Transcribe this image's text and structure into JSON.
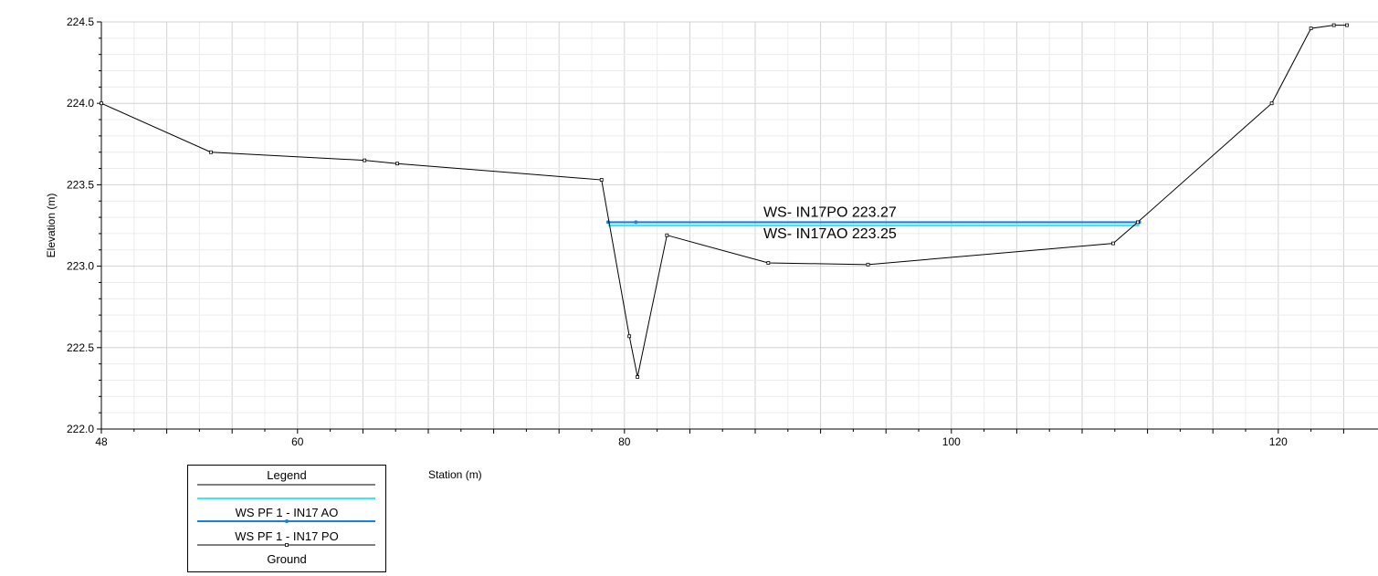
{
  "chart_data": {
    "type": "line",
    "title": "",
    "xlabel": "Station (m)",
    "ylabel": "Elevation (m)",
    "xlim": [
      48,
      125
    ],
    "ylim": [
      222.0,
      224.5
    ],
    "x_ticks": [
      "48",
      "60",
      "80",
      "100",
      "120"
    ],
    "y_ticks": [
      "222.0",
      "222.5",
      "223.0",
      "223.5",
      "224.0",
      "224.5"
    ],
    "grid": true,
    "legend_position": "bottom-left",
    "legend_title": "Legend",
    "series": [
      {
        "name": "WS PF 1 - IN17 AO",
        "color": "#3ee6f0",
        "x": [
          79.0,
          111.5
        ],
        "y": [
          223.25,
          223.25
        ]
      },
      {
        "name": "WS PF 1 - IN17 PO",
        "color": "#1a7fe0",
        "x": [
          79.0,
          80.7,
          111.5
        ],
        "y": [
          223.27,
          223.27,
          223.27
        ]
      },
      {
        "name": "Ground",
        "color": "#000000",
        "x": [
          48.0,
          54.7,
          64.1,
          66.1,
          78.6,
          80.3,
          80.8,
          82.6,
          88.8,
          94.9,
          109.9,
          111.4,
          119.6,
          122.0,
          123.4,
          124.2
        ],
        "y": [
          224.0,
          223.7,
          223.65,
          223.63,
          223.53,
          222.57,
          222.32,
          223.19,
          223.02,
          223.01,
          223.14,
          223.27,
          224.0,
          224.46,
          224.48,
          224.48
        ]
      }
    ],
    "annotations": [
      {
        "text": "WS- IN17PO 223.27"
      },
      {
        "text": "WS- IN17AO 223.25"
      }
    ]
  }
}
